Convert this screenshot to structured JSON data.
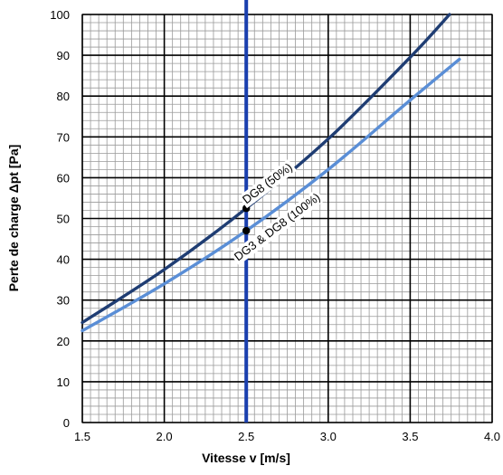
{
  "chart_data": {
    "type": "line",
    "xlabel": "Vitesse v [m/s]",
    "ylabel": "Perte de charge Δpt [Pa]",
    "xlim": [
      1.5,
      4.0
    ],
    "ylim": [
      0,
      100
    ],
    "x_ticks": [
      "1.5",
      "2.0",
      "2.5",
      "3.0",
      "3.5",
      "4.0"
    ],
    "y_ticks": [
      "0",
      "10",
      "20",
      "30",
      "40",
      "50",
      "60",
      "70",
      "80",
      "90",
      "100"
    ],
    "grid": true,
    "series": [
      {
        "name": "DG8 (50%)",
        "color": "#1f3d73",
        "x": [
          1.5,
          2.0,
          2.5,
          3.0,
          3.5,
          3.74
        ],
        "y": [
          24.5,
          37.5,
          52.5,
          69.5,
          89.5,
          100
        ]
      },
      {
        "name": "DG3  & DG8 (100%)",
        "color": "#5a8ed6",
        "x": [
          1.5,
          2.0,
          2.5,
          3.0,
          3.5,
          3.8
        ],
        "y": [
          22.5,
          34.0,
          47.0,
          62.0,
          79.0,
          89.0
        ]
      }
    ],
    "reference_line": {
      "x": 2.5,
      "color": "#1a3fae"
    },
    "markers": [
      {
        "x": 2.5,
        "y": 52.5
      },
      {
        "x": 2.5,
        "y": 47.0
      }
    ],
    "annotations": [
      {
        "text": "DG8 (50%)",
        "x": 2.5,
        "y": 53.5
      },
      {
        "text": "DG3  & DG8 (100%)",
        "x": 2.45,
        "y": 39.5
      }
    ]
  }
}
